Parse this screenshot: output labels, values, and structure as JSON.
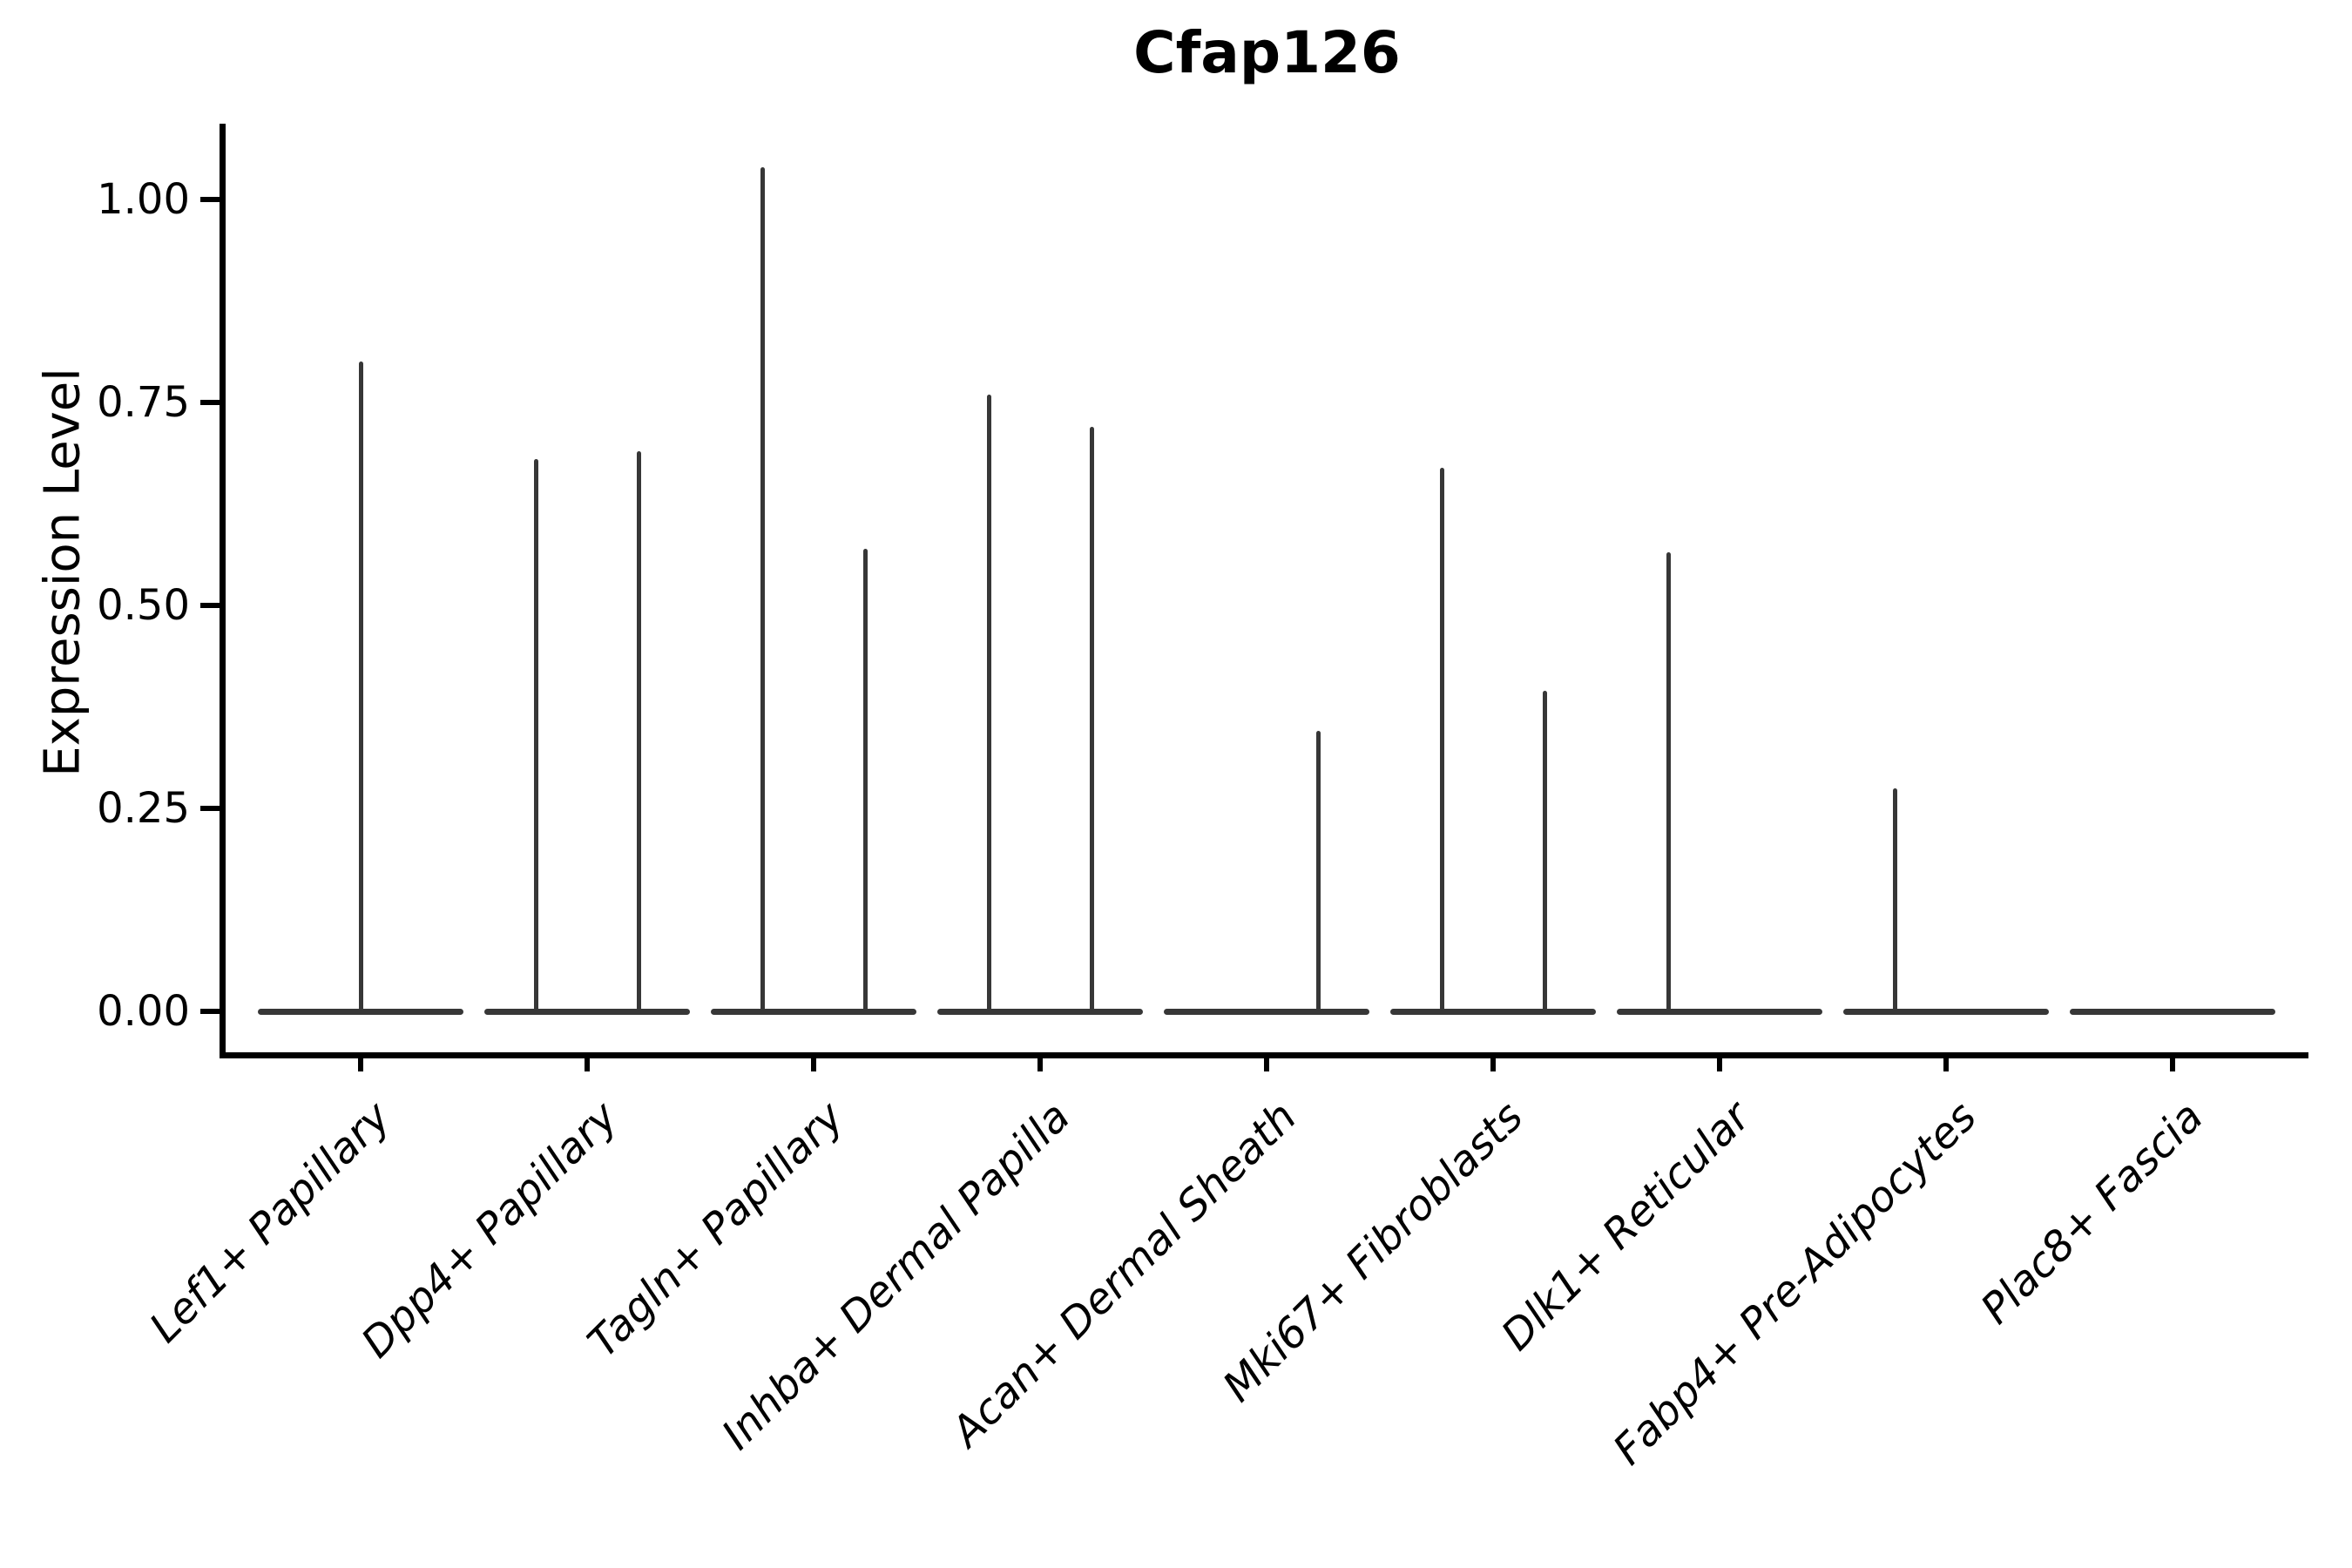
{
  "title": "Cfap126",
  "y_axis": {
    "label": "Expression Level",
    "ticks": [
      {
        "label": "1.00",
        "value": 1.0
      },
      {
        "label": "0.75",
        "value": 0.75
      },
      {
        "label": "0.50",
        "value": 0.5
      },
      {
        "label": "0.25",
        "value": 0.25
      },
      {
        "label": "0.00",
        "value": 0.0
      }
    ]
  },
  "colors": {
    "violin": "#373737",
    "axis": "#000000",
    "text": "#000000",
    "background": "#ffffff"
  },
  "chart_data": {
    "type": "violin",
    "title": "Cfap126",
    "xlabel": "",
    "ylabel": "Expression Level",
    "ylim": [
      -0.052,
      1.093
    ],
    "grid": false,
    "legend": "none",
    "description": "Collapsed violin plot (single-cell expression): each category shows a flat violin body at 0 plus thin vertical spikes at expressing-cell values; spike side gives within-violin position (-1 left, 0 center, 1 right).",
    "categories": [
      "Lef1+ Papillary",
      "Dpp4+ Papillary",
      "Tagln+ Papillary",
      "Inhba+ Dermal Papilla",
      "Acan+ Dermal Sheath",
      "Mki67+ Fibroblasts",
      "Dlk1+ Reticular",
      "Fabp4+ Pre-Adipocytes",
      "Plac8+ Fascia"
    ],
    "series": [
      {
        "category": "Lef1+ Papillary",
        "baseline": 0.0,
        "spikes": [
          {
            "side": 0,
            "value": 0.8
          }
        ]
      },
      {
        "category": "Dpp4+ Papillary",
        "baseline": 0.0,
        "spikes": [
          {
            "side": -1,
            "value": 0.68
          },
          {
            "side": 1,
            "value": 0.69
          }
        ]
      },
      {
        "category": "Tagln+ Papillary",
        "baseline": 0.0,
        "spikes": [
          {
            "side": -1,
            "value": 1.04
          },
          {
            "side": 1,
            "value": 0.57
          }
        ]
      },
      {
        "category": "Inhba+ Dermal Papilla",
        "baseline": 0.0,
        "spikes": [
          {
            "side": -1,
            "value": 0.76
          },
          {
            "side": 1,
            "value": 0.72
          }
        ]
      },
      {
        "category": "Acan+ Dermal Sheath",
        "baseline": 0.0,
        "spikes": [
          {
            "side": 1,
            "value": 0.345
          }
        ]
      },
      {
        "category": "Mki67+ Fibroblasts",
        "baseline": 0.0,
        "spikes": [
          {
            "side": -1,
            "value": 0.67
          },
          {
            "side": 1,
            "value": 0.395
          }
        ]
      },
      {
        "category": "Dlk1+ Reticular",
        "baseline": 0.0,
        "spikes": [
          {
            "side": -1,
            "value": 0.565
          }
        ]
      },
      {
        "category": "Fabp4+ Pre-Adipocytes",
        "baseline": 0.0,
        "spikes": [
          {
            "side": -1,
            "value": 0.275
          }
        ]
      },
      {
        "category": "Plac8+ Fascia",
        "baseline": 0.0,
        "spikes": []
      }
    ]
  }
}
